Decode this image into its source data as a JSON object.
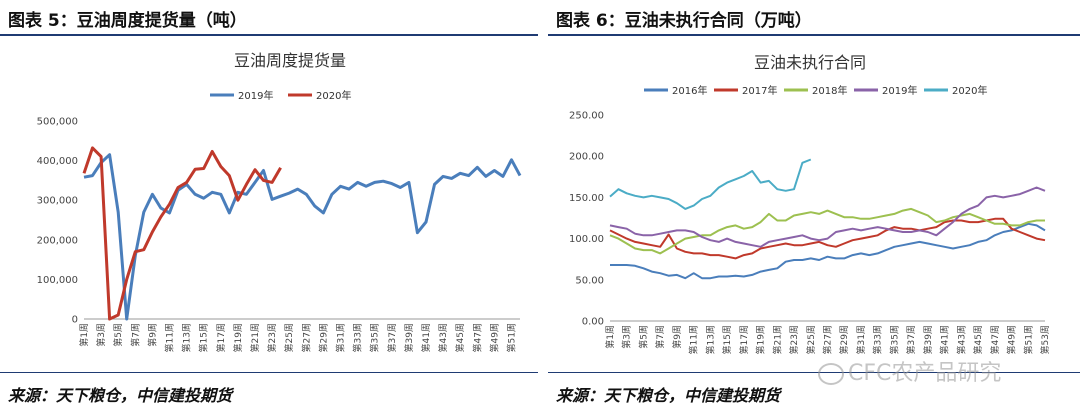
{
  "left": {
    "figure_title": "图表 5：豆油周度提货量（吨）",
    "source": "来源：天下粮仓，中信建投期货"
  },
  "right": {
    "figure_title": "图表 6：豆油未执行合同（万吨）",
    "source": "来源：天下粮仓，中信建投期货"
  },
  "watermark": "CFC农产品研究",
  "chart_data": [
    {
      "type": "line",
      "title": "豆油周度提货量",
      "xlabel": "",
      "ylabel": "",
      "ylim": [
        0,
        500000
      ],
      "yticks": [
        0,
        100000,
        200000,
        300000,
        400000,
        500000
      ],
      "ytick_labels": [
        "0",
        "100,000",
        "200,000",
        "300,000",
        "400,000",
        "500,000"
      ],
      "x_count": 52,
      "x_tick_labels": [
        "第1周",
        "第3周",
        "第5周",
        "第7周",
        "第9周",
        "第11周",
        "第13周",
        "第15周",
        "第17周",
        "第19周",
        "第21周",
        "第23周",
        "第25周",
        "第27周",
        "第29周",
        "第31周",
        "第33周",
        "第35周",
        "第37周",
        "第39周",
        "第41周",
        "第43周",
        "第45周",
        "第47周",
        "第49周",
        "第51周"
      ],
      "legend_position": "top",
      "series": [
        {
          "name": "2019年",
          "color": "#4a7ebb",
          "values": [
            358000,
            362000,
            395000,
            415000,
            270000,
            0,
            160000,
            270000,
            315000,
            280000,
            268000,
            325000,
            340000,
            315000,
            305000,
            320000,
            315000,
            268000,
            320000,
            315000,
            345000,
            375000,
            302000,
            310000,
            318000,
            328000,
            315000,
            285000,
            268000,
            315000,
            335000,
            328000,
            345000,
            335000,
            345000,
            348000,
            342000,
            332000,
            345000,
            218000,
            245000,
            340000,
            360000,
            355000,
            368000,
            362000,
            383000,
            360000,
            375000,
            360000,
            402000,
            362000
          ]
        },
        {
          "name": "2020年",
          "color": "#c0392b",
          "values": [
            368000,
            432000,
            410000,
            0,
            10000,
            100000,
            170000,
            175000,
            220000,
            258000,
            290000,
            332000,
            345000,
            378000,
            380000,
            423000,
            385000,
            362000,
            300000,
            340000,
            377000,
            350000,
            345000,
            382000
          ]
        }
      ]
    },
    {
      "type": "line",
      "title": "豆油未执行合同",
      "xlabel": "",
      "ylabel": "",
      "ylim": [
        0,
        250
      ],
      "yticks": [
        0,
        50,
        100,
        150,
        200,
        250
      ],
      "ytick_labels": [
        "0.00",
        "50.00",
        "100.00",
        "150.00",
        "200.00",
        "250.00"
      ],
      "x_count": 53,
      "x_tick_labels": [
        "第1周",
        "第3周",
        "第5周",
        "第7周",
        "第9周",
        "第11周",
        "第13周",
        "第15周",
        "第17周",
        "第19周",
        "第21周",
        "第23周",
        "第25周",
        "第27周",
        "第29周",
        "第31周",
        "第33周",
        "第35周",
        "第37周",
        "第39周",
        "第41周",
        "第43周",
        "第45周",
        "第47周",
        "第49周",
        "第51周",
        "第53周"
      ],
      "legend_position": "top",
      "series": [
        {
          "name": "2016年",
          "color": "#4a7ebb",
          "values": [
            68,
            68,
            68,
            67,
            64,
            60,
            58,
            55,
            56,
            52,
            58,
            52,
            52,
            54,
            54,
            55,
            54,
            56,
            60,
            62,
            64,
            72,
            74,
            74,
            76,
            74,
            78,
            76,
            76,
            80,
            82,
            80,
            82,
            86,
            90,
            92,
            94,
            96,
            94,
            92,
            90,
            88,
            90,
            92,
            96,
            98,
            104,
            108,
            110,
            114,
            118,
            116,
            110
          ]
        },
        {
          "name": "2017年",
          "color": "#c0392b",
          "values": [
            110,
            105,
            100,
            96,
            94,
            92,
            90,
            105,
            88,
            84,
            82,
            82,
            80,
            80,
            78,
            76,
            80,
            82,
            88,
            90,
            92,
            94,
            92,
            92,
            94,
            96,
            92,
            90,
            94,
            98,
            100,
            102,
            104,
            110,
            114,
            112,
            112,
            110,
            112,
            114,
            120,
            122,
            122,
            120,
            120,
            122,
            124,
            124,
            112,
            108,
            104,
            100,
            98
          ]
        },
        {
          "name": "2018年",
          "color": "#9dc050",
          "values": [
            104,
            100,
            94,
            88,
            86,
            86,
            82,
            88,
            94,
            100,
            102,
            104,
            104,
            110,
            114,
            116,
            112,
            114,
            120,
            130,
            122,
            122,
            128,
            130,
            132,
            130,
            134,
            130,
            126,
            126,
            124,
            124,
            126,
            128,
            130,
            134,
            136,
            132,
            128,
            120,
            122,
            126,
            128,
            130,
            126,
            122,
            118,
            118,
            116,
            116,
            120,
            122,
            122
          ]
        },
        {
          "name": "2019年",
          "color": "#8a63a8",
          "values": [
            116,
            114,
            112,
            106,
            104,
            104,
            106,
            108,
            110,
            110,
            108,
            102,
            98,
            96,
            100,
            96,
            94,
            92,
            90,
            96,
            98,
            100,
            102,
            104,
            100,
            98,
            100,
            108,
            110,
            112,
            110,
            112,
            114,
            112,
            110,
            108,
            108,
            110,
            108,
            104,
            112,
            120,
            130,
            136,
            140,
            150,
            152,
            150,
            152,
            154,
            158,
            162,
            158
          ]
        },
        {
          "name": "2020年",
          "color": "#4bacc6",
          "values": [
            151,
            160,
            155,
            152,
            150,
            152,
            150,
            148,
            143,
            136,
            140,
            148,
            152,
            162,
            168,
            172,
            176,
            182,
            168,
            170,
            160,
            158,
            160,
            192,
            196
          ]
        }
      ]
    }
  ]
}
